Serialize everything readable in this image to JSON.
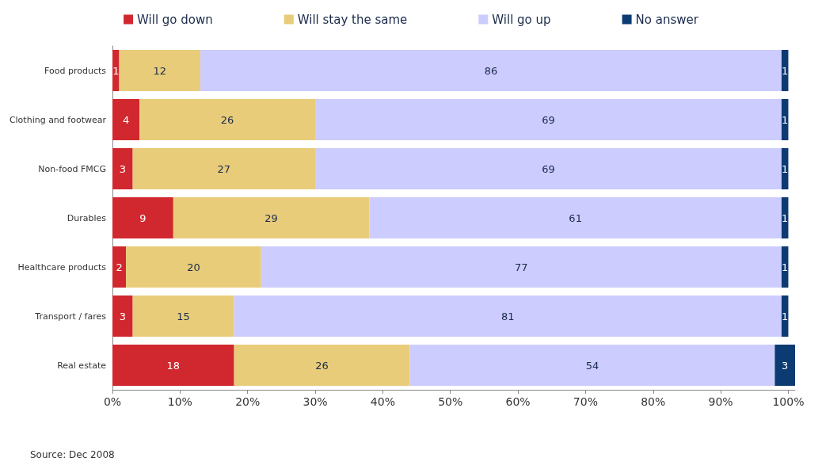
{
  "chart_data": {
    "type": "bar",
    "orientation": "horizontal",
    "stacked": true,
    "data_labels": true,
    "legend": "top",
    "grid": false,
    "categories": [
      "Food products",
      "Clothing and footwear",
      "Non-food FMCG",
      "Durables",
      "Healthcare products",
      "Transport / fares",
      "Real estate"
    ],
    "series": [
      {
        "name": "Will go down",
        "color": "#d0282e",
        "values": [
          1,
          4,
          3,
          9,
          2,
          3,
          18
        ]
      },
      {
        "name": "Will stay the same",
        "color": "#e8cc7a",
        "values": [
          12,
          26,
          27,
          29,
          20,
          15,
          26
        ]
      },
      {
        "name": "Will go up",
        "color": "#ccccff",
        "values": [
          86,
          69,
          69,
          61,
          77,
          81,
          54
        ]
      },
      {
        "name": "No answer",
        "color": "#0c3a72",
        "values": [
          1,
          1,
          1,
          1,
          1,
          1,
          3
        ]
      }
    ],
    "xlim": [
      0,
      101
    ],
    "xticks": [
      {
        "value": 0,
        "label": "0%"
      },
      {
        "value": 10,
        "label": "10%"
      },
      {
        "value": 20,
        "label": "20%"
      },
      {
        "value": 30,
        "label": "30%"
      },
      {
        "value": 40,
        "label": "40%"
      },
      {
        "value": 50,
        "label": "50%"
      },
      {
        "value": 60,
        "label": "60%"
      },
      {
        "value": 70,
        "label": "70%"
      },
      {
        "value": 80,
        "label": "80%"
      },
      {
        "value": 90,
        "label": "90%"
      },
      {
        "value": 100,
        "label": "100%"
      }
    ],
    "annotations": [
      "Source: Dec 2008"
    ]
  }
}
